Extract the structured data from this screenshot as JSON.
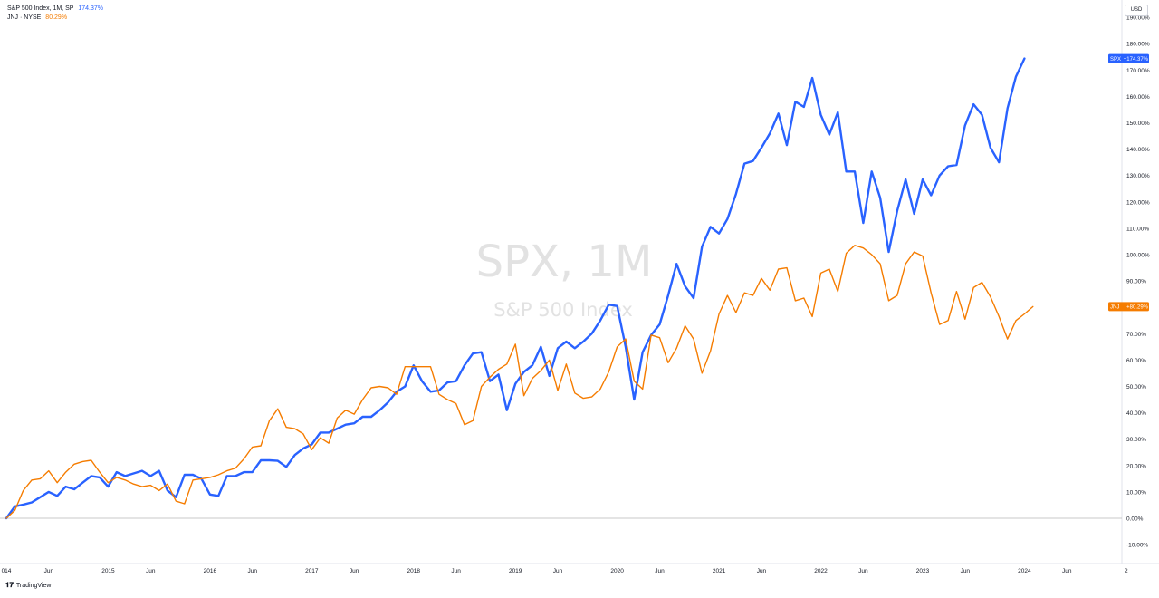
{
  "legend": {
    "spx": {
      "name": "S&P 500 Index, 1M, SP",
      "value": "174.37%"
    },
    "jnj": {
      "name": "JNJ · NYSE",
      "value": "80.29%"
    }
  },
  "currency": "USD",
  "footer": {
    "brand": "TradingView"
  },
  "colors": {
    "spx": "#2962ff",
    "jnj": "#f57c00",
    "axis_text": "#131722",
    "zero_line": "#c8c8c8"
  },
  "chart_data": {
    "type": "line",
    "watermark": {
      "symbol": "SPX, 1M",
      "description": "S&P 500 Index"
    },
    "x_start": "2014-01",
    "x_end": "2024-01",
    "ylim": [
      -15,
      185
    ],
    "grid": false,
    "y_ticks": [
      "190.00%",
      "180.00%",
      "170.00%",
      "160.00%",
      "150.00%",
      "140.00%",
      "130.00%",
      "120.00%",
      "110.00%",
      "100.00%",
      "90.00%",
      "80.00%",
      "70.00%",
      "60.00%",
      "50.00%",
      "40.00%",
      "30.00%",
      "20.00%",
      "10.00%",
      "0.00%",
      "-10.00%"
    ],
    "x_ticks": [
      {
        "label": "014",
        "month": "2014-01"
      },
      {
        "label": "Jun",
        "month": "2014-06"
      },
      {
        "label": "2015",
        "month": "2015-01"
      },
      {
        "label": "Jun",
        "month": "2015-06"
      },
      {
        "label": "2016",
        "month": "2016-01"
      },
      {
        "label": "Jun",
        "month": "2016-06"
      },
      {
        "label": "2017",
        "month": "2017-01"
      },
      {
        "label": "Jun",
        "month": "2017-06"
      },
      {
        "label": "2018",
        "month": "2018-01"
      },
      {
        "label": "Jun",
        "month": "2018-06"
      },
      {
        "label": "2019",
        "month": "2019-01"
      },
      {
        "label": "Jun",
        "month": "2019-06"
      },
      {
        "label": "2020",
        "month": "2020-01"
      },
      {
        "label": "Jun",
        "month": "2020-06"
      },
      {
        "label": "2021",
        "month": "2021-01"
      },
      {
        "label": "Jun",
        "month": "2021-06"
      },
      {
        "label": "2022",
        "month": "2022-01"
      },
      {
        "label": "Jun",
        "month": "2022-06"
      },
      {
        "label": "2023",
        "month": "2023-01"
      },
      {
        "label": "Jun",
        "month": "2023-06"
      },
      {
        "label": "2024",
        "month": "2024-01"
      },
      {
        "label": "Jun",
        "month": "2024-06"
      },
      {
        "label": "2",
        "month": "2025-01"
      }
    ],
    "series": [
      {
        "name": "SPX",
        "last_label": "+174.37%",
        "values": [
          0,
          4.5,
          5.2,
          6,
          8,
          10,
          8.5,
          12,
          11,
          13.5,
          16,
          15.5,
          12,
          17.5,
          16,
          17,
          18,
          16,
          18,
          10.5,
          8,
          16.5,
          16.5,
          15,
          9,
          8.5,
          16,
          16,
          17.5,
          17.5,
          22,
          22,
          21.8,
          19.5,
          24,
          26.5,
          28,
          32.5,
          32.5,
          34,
          35.5,
          36,
          38.5,
          38.5,
          41,
          44,
          48,
          50,
          58,
          52,
          48,
          48.5,
          51.5,
          52,
          58,
          62.5,
          63,
          52,
          54.5,
          41,
          51,
          55.5,
          58,
          65,
          54,
          64.5,
          67,
          64.5,
          67,
          70,
          75,
          81,
          80.5,
          65,
          45,
          63,
          69.5,
          73.5,
          84.5,
          96.5,
          88,
          83.5,
          103,
          110.5,
          108,
          113.5,
          123,
          134.5,
          135.5,
          140.5,
          146,
          153.5,
          141.5,
          158,
          156,
          167,
          153,
          145.5,
          154,
          131.5,
          131.5,
          112,
          131.5,
          121.5,
          101,
          116.5,
          128.5,
          115.5,
          128.5,
          122.5,
          130,
          133.5,
          134,
          149,
          157,
          153,
          140.5,
          135,
          155.5,
          167.5,
          174.37
        ]
      },
      {
        "name": "JNJ",
        "last_label": "+80.29%",
        "values": [
          0,
          3,
          10.5,
          14.5,
          15,
          18,
          13.5,
          17.5,
          20.5,
          21.5,
          22,
          17.5,
          13.5,
          15.5,
          14.5,
          13,
          12,
          12.5,
          10.5,
          13,
          6.5,
          5.5,
          14.5,
          15,
          15.5,
          16.5,
          18,
          19,
          22.5,
          27,
          27.5,
          37,
          41.5,
          34.5,
          34,
          32,
          26,
          30.5,
          28.5,
          38,
          41,
          39.5,
          45,
          49.5,
          50,
          49.5,
          47,
          57.5,
          57.5,
          57.5,
          57.5,
          47,
          45,
          43.5,
          35.5,
          37,
          50,
          53.5,
          56.5,
          58.5,
          66,
          46.5,
          53,
          56,
          60,
          48.5,
          58.5,
          47.5,
          45.5,
          46,
          49,
          55.5,
          65,
          68,
          52,
          49,
          69.5,
          68.5,
          59,
          64.5,
          73,
          68,
          55,
          63.5,
          77.5,
          84.5,
          78,
          85.5,
          84.5,
          91,
          86.5,
          94.5,
          95,
          82.5,
          83.5,
          76.5,
          93,
          94.5,
          86,
          100.5,
          103.5,
          102.5,
          100,
          96.5,
          82.5,
          84.5,
          96.5,
          101,
          99.5,
          85.5,
          73.5,
          75,
          86,
          75.5,
          87.5,
          89.5,
          84,
          76.5,
          68,
          75,
          77.5,
          80.29
        ]
      }
    ]
  }
}
